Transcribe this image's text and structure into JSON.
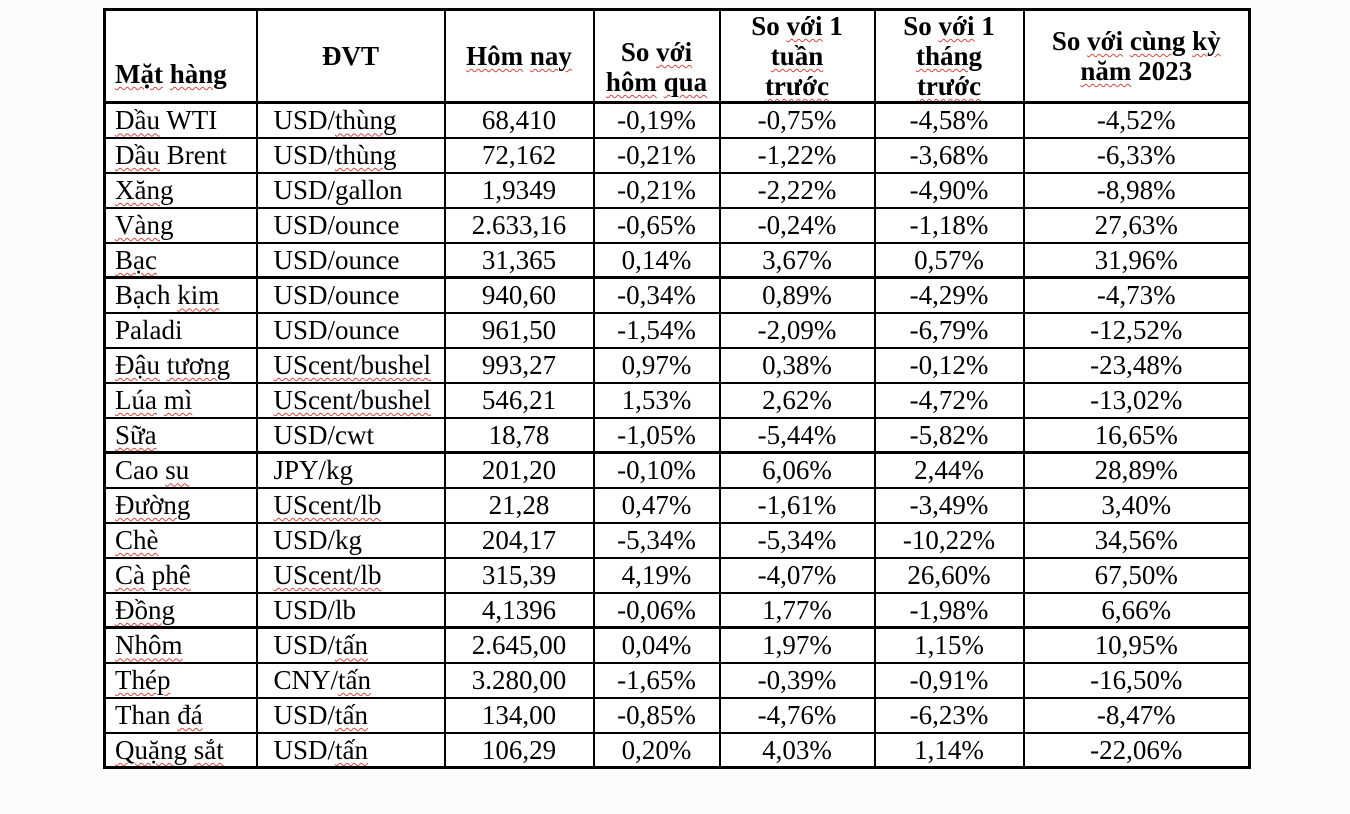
{
  "meta": {
    "page_background": "#fcfcfc",
    "cell_background": "#ffffff",
    "border_color": "#000000",
    "text_color": "#000000",
    "spellcheck_squiggle_color": "#cf4a44"
  },
  "table": {
    "headers": [
      {
        "id": "mat-hang",
        "label": "Mặt hàng",
        "lines": [
          [
            {
              "t": "Mặt",
              "w": 1
            },
            {
              "t": " ",
              "w": 0
            },
            {
              "t": "hàng",
              "w": 1
            }
          ]
        ]
      },
      {
        "id": "dvt",
        "label": "ĐVT",
        "lines": [
          [
            {
              "t": "ĐVT",
              "w": 0
            }
          ]
        ]
      },
      {
        "id": "hom-nay",
        "label": "Hôm nay",
        "lines": [
          [
            {
              "t": "Hôm",
              "w": 1
            },
            {
              "t": " ",
              "w": 0
            },
            {
              "t": "nay",
              "w": 1
            }
          ]
        ]
      },
      {
        "id": "so-voi-hom-qua",
        "label": "So với hôm qua",
        "lines": [
          [
            {
              "t": "So ",
              "w": 0
            },
            {
              "t": "với",
              "w": 1
            }
          ],
          [
            {
              "t": "hôm",
              "w": 1
            },
            {
              "t": " ",
              "w": 0
            },
            {
              "t": "qua",
              "w": 1
            }
          ]
        ]
      },
      {
        "id": "so-voi-1-tuan-truoc",
        "label": "So với 1 tuần trước",
        "lines": [
          [
            {
              "t": "So ",
              "w": 0
            },
            {
              "t": "với",
              "w": 1
            },
            {
              "t": " 1",
              "w": 0
            }
          ],
          [
            {
              "t": "tuần",
              "w": 1
            }
          ],
          [
            {
              "t": "trước",
              "w": 1
            }
          ]
        ]
      },
      {
        "id": "so-voi-1-thang-truoc",
        "label": "So với 1 tháng trước",
        "lines": [
          [
            {
              "t": "So ",
              "w": 0
            },
            {
              "t": "với",
              "w": 1
            },
            {
              "t": " 1",
              "w": 0
            }
          ],
          [
            {
              "t": "tháng",
              "w": 1
            }
          ],
          [
            {
              "t": "trước",
              "w": 1
            }
          ]
        ]
      },
      {
        "id": "so-voi-cung-ky-nam-2023",
        "label": "So với cùng kỳ năm 2023",
        "lines": [
          [
            {
              "t": "So ",
              "w": 0
            },
            {
              "t": "với",
              "w": 1
            },
            {
              "t": " ",
              "w": 0
            },
            {
              "t": "cùng",
              "w": 1
            },
            {
              "t": " ",
              "w": 0
            },
            {
              "t": "kỳ",
              "w": 1
            }
          ],
          [
            {
              "t": "năm",
              "w": 1
            },
            {
              "t": " 2023",
              "w": 0
            }
          ]
        ]
      }
    ],
    "rows": [
      {
        "cells": [
          {
            "lines": [
              [
                {
                  "t": "Dầu",
                  "w": 1
                },
                {
                  "t": " WTI",
                  "w": 0
                }
              ]
            ]
          },
          {
            "lines": [
              [
                {
                  "t": "USD/",
                  "w": 0
                },
                {
                  "t": "thùng",
                  "w": 1
                }
              ]
            ]
          },
          "68,410",
          "-0,19%",
          "-0,75%",
          "-4,58%",
          "-4,52%"
        ]
      },
      {
        "cells": [
          {
            "lines": [
              [
                {
                  "t": "Dầu",
                  "w": 1
                },
                {
                  "t": " Brent",
                  "w": 0
                }
              ]
            ]
          },
          {
            "lines": [
              [
                {
                  "t": "USD/",
                  "w": 0
                },
                {
                  "t": "thùng",
                  "w": 1
                }
              ]
            ]
          },
          "72,162",
          "-0,21%",
          "-1,22%",
          "-3,68%",
          "-6,33%"
        ]
      },
      {
        "cells": [
          {
            "lines": [
              [
                {
                  "t": "Xăng",
                  "w": 1
                }
              ]
            ]
          },
          {
            "lines": [
              [
                {
                  "t": "USD/gallon",
                  "w": 0
                }
              ]
            ]
          },
          "1,9349",
          "-0,21%",
          "-2,22%",
          "-4,90%",
          "-8,98%"
        ]
      },
      {
        "cells": [
          {
            "lines": [
              [
                {
                  "t": "Vàng",
                  "w": 1
                }
              ]
            ]
          },
          {
            "lines": [
              [
                {
                  "t": "USD/ounce",
                  "w": 0
                }
              ]
            ]
          },
          "2.633,16",
          "-0,65%",
          "-0,24%",
          "-1,18%",
          "27,63%"
        ]
      },
      {
        "cells": [
          {
            "lines": [
              [
                {
                  "t": "Bạc",
                  "w": 1
                }
              ]
            ]
          },
          {
            "lines": [
              [
                {
                  "t": "USD/ounce",
                  "w": 0
                }
              ]
            ]
          },
          "31,365",
          "0,14%",
          "3,67%",
          "0,57%",
          "31,96%"
        ]
      },
      {
        "cells": [
          {
            "lines": [
              [
                {
                  "t": "Bạch ",
                  "w": 0
                },
                {
                  "t": "kim",
                  "w": 1
                }
              ]
            ]
          },
          {
            "lines": [
              [
                {
                  "t": "USD/ounce",
                  "w": 0
                }
              ]
            ]
          },
          "940,60",
          "-0,34%",
          "0,89%",
          "-4,29%",
          "-4,73%"
        ]
      },
      {
        "cells": [
          {
            "lines": [
              [
                {
                  "t": "Paladi",
                  "w": 0
                }
              ]
            ]
          },
          {
            "lines": [
              [
                {
                  "t": "USD/ounce",
                  "w": 0
                }
              ]
            ]
          },
          "961,50",
          "-1,54%",
          "-2,09%",
          "-6,79%",
          "-12,52%"
        ]
      },
      {
        "cells": [
          {
            "lines": [
              [
                {
                  "t": "Đậu",
                  "w": 1
                },
                {
                  "t": " ",
                  "w": 0
                },
                {
                  "t": "tương",
                  "w": 1
                }
              ]
            ]
          },
          {
            "lines": [
              [
                {
                  "t": "UScent/bushel",
                  "w": 1
                }
              ]
            ]
          },
          "993,27",
          "0,97%",
          "0,38%",
          "-0,12%",
          "-23,48%"
        ]
      },
      {
        "cells": [
          {
            "lines": [
              [
                {
                  "t": "Lúa",
                  "w": 1
                },
                {
                  "t": " ",
                  "w": 0
                },
                {
                  "t": "mì",
                  "w": 1
                }
              ]
            ]
          },
          {
            "lines": [
              [
                {
                  "t": "UScent/bushel",
                  "w": 1
                }
              ]
            ]
          },
          "546,21",
          "1,53%",
          "2,62%",
          "-4,72%",
          "-13,02%"
        ]
      },
      {
        "cells": [
          {
            "lines": [
              [
                {
                  "t": "Sữa",
                  "w": 1
                }
              ]
            ]
          },
          {
            "lines": [
              [
                {
                  "t": "USD/cwt",
                  "w": 0
                }
              ]
            ]
          },
          "18,78",
          "-1,05%",
          "-5,44%",
          "-5,82%",
          "16,65%"
        ]
      },
      {
        "cells": [
          {
            "lines": [
              [
                {
                  "t": "Cao ",
                  "w": 0
                },
                {
                  "t": "su",
                  "w": 1
                }
              ]
            ]
          },
          {
            "lines": [
              [
                {
                  "t": "JPY/kg",
                  "w": 0
                }
              ]
            ]
          },
          "201,20",
          "-0,10%",
          "6,06%",
          "2,44%",
          "28,89%"
        ]
      },
      {
        "cells": [
          {
            "lines": [
              [
                {
                  "t": "Đường",
                  "w": 1
                }
              ]
            ]
          },
          {
            "lines": [
              [
                {
                  "t": "UScent/lb",
                  "w": 1
                }
              ]
            ]
          },
          "21,28",
          "0,47%",
          "-1,61%",
          "-3,49%",
          "3,40%"
        ]
      },
      {
        "cells": [
          {
            "lines": [
              [
                {
                  "t": "Chè",
                  "w": 1
                }
              ]
            ]
          },
          {
            "lines": [
              [
                {
                  "t": "USD/kg",
                  "w": 0
                }
              ]
            ]
          },
          "204,17",
          "-5,34%",
          "-5,34%",
          "-10,22%",
          "34,56%"
        ]
      },
      {
        "cells": [
          {
            "lines": [
              [
                {
                  "t": "Cà",
                  "w": 1
                },
                {
                  "t": " ",
                  "w": 0
                },
                {
                  "t": "phê",
                  "w": 1
                }
              ]
            ]
          },
          {
            "lines": [
              [
                {
                  "t": "UScent/lb",
                  "w": 1
                }
              ]
            ]
          },
          "315,39",
          "4,19%",
          "-4,07%",
          "26,60%",
          "67,50%"
        ]
      },
      {
        "cells": [
          {
            "lines": [
              [
                {
                  "t": "Đồng",
                  "w": 1
                }
              ]
            ]
          },
          {
            "lines": [
              [
                {
                  "t": "USD/lb",
                  "w": 0
                }
              ]
            ]
          },
          "4,1396",
          "-0,06%",
          "1,77%",
          "-1,98%",
          "6,66%"
        ]
      },
      {
        "cells": [
          {
            "lines": [
              [
                {
                  "t": "Nhôm",
                  "w": 1
                }
              ]
            ]
          },
          {
            "lines": [
              [
                {
                  "t": "USD/",
                  "w": 0
                },
                {
                  "t": "tấn",
                  "w": 1
                }
              ]
            ]
          },
          "2.645,00",
          "0,04%",
          "1,97%",
          "1,15%",
          "10,95%"
        ]
      },
      {
        "cells": [
          {
            "lines": [
              [
                {
                  "t": "Thép",
                  "w": 1
                }
              ]
            ]
          },
          {
            "lines": [
              [
                {
                  "t": "CNY/",
                  "w": 0
                },
                {
                  "t": "tấn",
                  "w": 1
                }
              ]
            ]
          },
          "3.280,00",
          "-1,65%",
          "-0,39%",
          "-0,91%",
          "-16,50%"
        ]
      },
      {
        "cells": [
          {
            "lines": [
              [
                {
                  "t": "Than ",
                  "w": 0
                },
                {
                  "t": "đá",
                  "w": 1
                }
              ]
            ]
          },
          {
            "lines": [
              [
                {
                  "t": "USD/",
                  "w": 0
                },
                {
                  "t": "tấn",
                  "w": 1
                }
              ]
            ]
          },
          "134,00",
          "-0,85%",
          "-4,76%",
          "-6,23%",
          "-8,47%"
        ]
      },
      {
        "cells": [
          {
            "lines": [
              [
                {
                  "t": "Quặng",
                  "w": 1
                },
                {
                  "t": " ",
                  "w": 0
                },
                {
                  "t": "sắt",
                  "w": 1
                }
              ]
            ]
          },
          {
            "lines": [
              [
                {
                  "t": "USD/",
                  "w": 0
                },
                {
                  "t": "tấn",
                  "w": 1
                }
              ]
            ]
          },
          "106,29",
          "0,20%",
          "4,03%",
          "1,14%",
          "-22,06%"
        ]
      }
    ]
  }
}
